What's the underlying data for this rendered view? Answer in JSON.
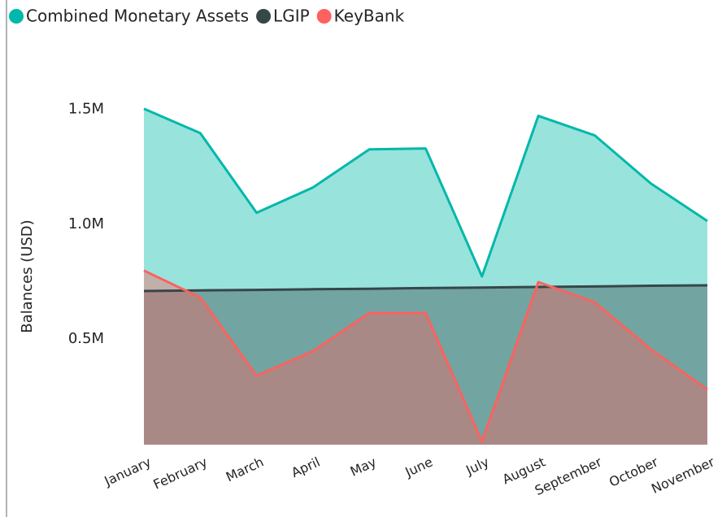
{
  "chart_data": {
    "type": "area",
    "y_label": "Balances (USD)",
    "categories": [
      "January",
      "February",
      "March",
      "April",
      "May",
      "June",
      "July",
      "August",
      "September",
      "October",
      "November"
    ],
    "series": [
      {
        "name": "Combined Monetary Assets",
        "color": "#01B8AA",
        "values": [
          1503000,
          1397000,
          1050000,
          1160000,
          1326000,
          1330000,
          773000,
          1472000,
          1387000,
          1177000,
          1014000
        ]
      },
      {
        "name": "LGIP",
        "color": "#374649",
        "values": [
          709000,
          712000,
          714000,
          717000,
          719000,
          722000,
          724000,
          727000,
          729000,
          732000,
          734000
        ]
      },
      {
        "name": "KeyBank",
        "color": "#FD625E",
        "values": [
          798000,
          681000,
          340000,
          447000,
          613000,
          613000,
          53000,
          748000,
          660000,
          454000,
          280000
        ]
      }
    ],
    "ylim": [
      40000,
      1750000
    ],
    "yticks": [
      {
        "value": 500000,
        "label": "0.5M"
      },
      {
        "value": 1000000,
        "label": "1.0M"
      },
      {
        "value": 1500000,
        "label": "1.5M"
      }
    ],
    "legend": "top-left"
  }
}
